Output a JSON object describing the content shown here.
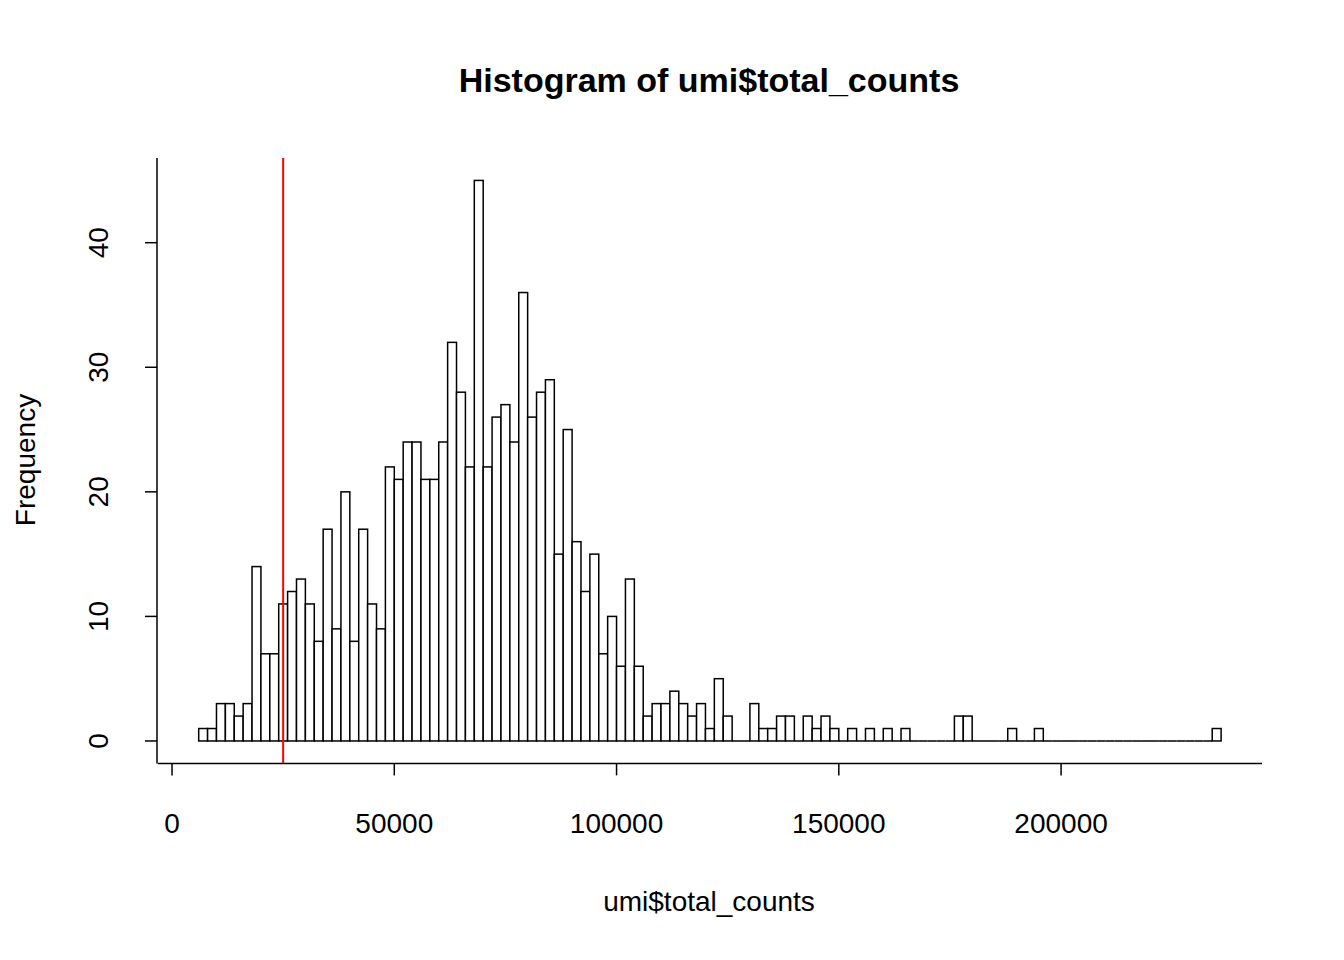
{
  "chart_data": {
    "type": "histogram",
    "title": "Histogram of umi$total_counts",
    "x_label": "umi$total_counts",
    "y_label": "Frequency",
    "bins": [
      6000,
      8000,
      10000,
      12000,
      14000,
      16000,
      18000,
      20000,
      22000,
      24000,
      26000,
      28000,
      30000,
      32000,
      34000,
      36000,
      38000,
      40000,
      42000,
      44000,
      46000,
      48000,
      50000,
      52000,
      54000,
      56000,
      58000,
      60000,
      62000,
      64000,
      66000,
      68000,
      70000,
      72000,
      74000,
      76000,
      78000,
      80000,
      82000,
      84000,
      86000,
      88000,
      90000,
      92000,
      94000,
      96000,
      98000,
      100000,
      102000,
      104000,
      106000,
      108000,
      110000,
      112000,
      114000,
      116000,
      118000,
      120000,
      122000,
      124000,
      126000,
      128000,
      130000,
      132000,
      134000,
      136000,
      138000,
      140000,
      142000,
      144000,
      146000,
      148000,
      150000,
      152000,
      154000,
      156000,
      158000,
      160000,
      162000,
      164000,
      166000,
      168000,
      170000,
      172000,
      174000,
      176000,
      178000,
      180000,
      182000,
      184000,
      186000,
      188000,
      190000,
      192000,
      194000,
      196000,
      198000,
      200000,
      202000,
      204000,
      206000,
      208000,
      210000,
      212000,
      214000,
      216000,
      218000,
      220000,
      222000,
      224000,
      226000,
      228000,
      230000,
      232000,
      234000,
      236000
    ],
    "values": [
      1,
      1,
      3,
      3,
      2,
      3,
      14,
      7,
      7,
      11,
      12,
      13,
      11,
      8,
      17,
      9,
      20,
      8,
      17,
      11,
      9,
      22,
      21,
      24,
      24,
      21,
      21,
      24,
      32,
      28,
      22,
      45,
      22,
      26,
      27,
      24,
      36,
      26,
      28,
      29,
      15,
      25,
      16,
      12,
      15,
      7,
      10,
      6,
      13,
      6,
      2,
      3,
      3,
      4,
      3,
      2,
      3,
      1,
      5,
      2,
      0,
      0,
      3,
      1,
      1,
      2,
      2,
      0,
      2,
      1,
      2,
      1,
      0,
      1,
      0,
      1,
      0,
      1,
      0,
      1,
      0,
      0,
      0,
      0,
      0,
      2,
      2,
      0,
      0,
      0,
      0,
      1,
      0,
      0,
      1,
      0,
      0,
      0,
      0,
      0,
      0,
      0,
      0,
      0,
      0,
      0,
      0,
      0,
      0,
      0,
      0,
      0,
      0,
      0,
      1
    ],
    "color": "#ffffff",
    "xlim": [
      -3200,
      245200
    ],
    "ylim": [
      -1.8,
      46.8
    ],
    "xticks": [
      0,
      50000,
      100000,
      150000,
      200000
    ],
    "yticks": [
      0,
      10,
      20,
      30,
      40
    ],
    "grid": false,
    "reference_line": {
      "x": 25000,
      "color": "#ff0000"
    }
  }
}
